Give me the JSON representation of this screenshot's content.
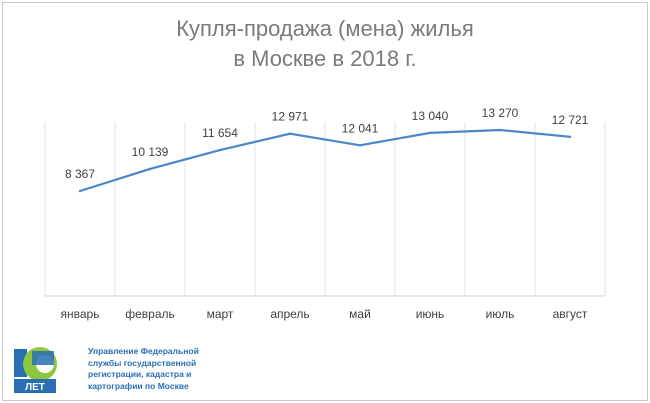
{
  "title_line1": "Купля-продажа (мена) жилья",
  "title_line2": "в Москве в 2018 г.",
  "chart_data": {
    "type": "line",
    "title": "Купля-продажа (мена) жилья в Москве в 2018 г.",
    "categories": [
      "январь",
      "февраль",
      "март",
      "апрель",
      "май",
      "июнь",
      "июль",
      "август"
    ],
    "values": [
      8367,
      10139,
      11654,
      12971,
      12041,
      13040,
      13270,
      12721
    ],
    "value_labels": [
      "8 367",
      "10 139",
      "11 654",
      "12 971",
      "12 041",
      "13 040",
      "13 270",
      "12 721"
    ],
    "xlabel": "",
    "ylabel": "",
    "line_color": "#4a86c8",
    "grid": "vertical",
    "legend": "none"
  },
  "logo": {
    "text": "ЛЕТ",
    "number": "10",
    "icon": "rosreestr-10-years-logo"
  },
  "organization": {
    "lines": [
      "Управление Федеральной",
      "службы государственной",
      "регистрации, кадастра и",
      "картографии по Москве"
    ]
  },
  "colors": {
    "title": "#7a7a7a",
    "line": "#4a86c8",
    "org_text": "#2a6fb5"
  }
}
